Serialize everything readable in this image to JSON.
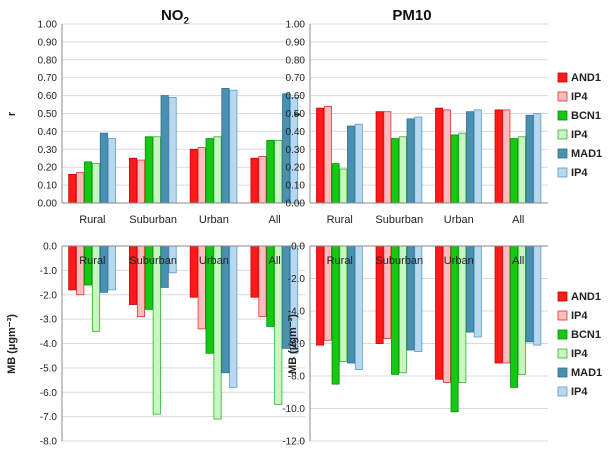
{
  "colors": {
    "AND1_fill": "#ff1a1a",
    "AND1_stroke": "#c00000",
    "IP4a_fill": "#ffbcbc",
    "IP4a_stroke": "#e03030",
    "BCN1_fill": "#14c814",
    "BCN1_stroke": "#009000",
    "IP4b_fill": "#c8f5c0",
    "IP4b_stroke": "#30b030",
    "MAD1_fill": "#4a90b0",
    "MAD1_stroke": "#2f6f8f",
    "IP4c_fill": "#b8d8f0",
    "IP4c_stroke": "#5a9ac8"
  },
  "legend": [
    "AND1",
    "IP4",
    "BCN1",
    "IP4",
    "MAD1",
    "IP4"
  ],
  "chart_data": [
    {
      "id": "no2-r",
      "type": "bar",
      "title": "NO",
      "title_sub": "2",
      "ylabel": "r",
      "ylim": [
        0,
        1.0
      ],
      "ytick_step": 0.1,
      "ytick_decimals": 2,
      "categories": [
        "Rural",
        "Suburban",
        "Urban",
        "All"
      ],
      "series": [
        {
          "name": "AND1",
          "values": [
            0.16,
            0.25,
            0.3,
            0.25
          ]
        },
        {
          "name": "IP4",
          "values": [
            0.17,
            0.24,
            0.31,
            0.26
          ]
        },
        {
          "name": "BCN1",
          "values": [
            0.23,
            0.37,
            0.36,
            0.35
          ]
        },
        {
          "name": "IP4",
          "values": [
            0.22,
            0.37,
            0.37,
            0.35
          ]
        },
        {
          "name": "MAD1",
          "values": [
            0.39,
            0.6,
            0.64,
            0.61
          ]
        },
        {
          "name": "IP4",
          "values": [
            0.36,
            0.59,
            0.63,
            0.59
          ]
        }
      ],
      "grid": true
    },
    {
      "id": "pm10-r",
      "type": "bar",
      "title": "PM10",
      "ylabel": "r",
      "ylim": [
        0,
        1.0
      ],
      "ytick_step": 0.1,
      "ytick_decimals": 2,
      "categories": [
        "Rural",
        "Suburban",
        "Urban",
        "All"
      ],
      "series": [
        {
          "name": "AND1",
          "values": [
            0.53,
            0.51,
            0.53,
            0.52
          ]
        },
        {
          "name": "IP4",
          "values": [
            0.54,
            0.51,
            0.52,
            0.52
          ]
        },
        {
          "name": "BCN1",
          "values": [
            0.22,
            0.36,
            0.38,
            0.36
          ]
        },
        {
          "name": "IP4",
          "values": [
            0.19,
            0.37,
            0.39,
            0.37
          ]
        },
        {
          "name": "MAD1",
          "values": [
            0.43,
            0.47,
            0.51,
            0.49
          ]
        },
        {
          "name": "IP4",
          "values": [
            0.44,
            0.48,
            0.52,
            0.5
          ]
        }
      ],
      "grid": true
    },
    {
      "id": "no2-mb",
      "type": "bar",
      "ylabel": "MB (µgm⁻³)",
      "ylim": [
        -8.0,
        0.0
      ],
      "ytick_step": 1.0,
      "ytick_decimals": 1,
      "categories": [
        "Rural",
        "Suburban",
        "Urban",
        "All"
      ],
      "series": [
        {
          "name": "AND1",
          "values": [
            -1.8,
            -2.4,
            -2.1,
            -2.1
          ]
        },
        {
          "name": "IP4",
          "values": [
            -2.0,
            -2.9,
            -3.4,
            -2.9
          ]
        },
        {
          "name": "BCN1",
          "values": [
            -1.6,
            -2.6,
            -4.4,
            -3.3
          ]
        },
        {
          "name": "IP4",
          "values": [
            -3.5,
            -6.9,
            -7.1,
            -6.5
          ]
        },
        {
          "name": "MAD1",
          "values": [
            -1.9,
            -1.7,
            -5.2,
            -4.2
          ]
        },
        {
          "name": "IP4",
          "values": [
            -1.8,
            -1.1,
            -5.8,
            -4.4
          ]
        }
      ],
      "grid": true
    },
    {
      "id": "pm10-mb",
      "type": "bar",
      "ylabel": "MB (µgm⁻³)",
      "ylim": [
        -12.0,
        0.0
      ],
      "ytick_step": 2.0,
      "ytick_decimals": 1,
      "categories": [
        "Rural",
        "Suburban",
        "Urban",
        "All"
      ],
      "series": [
        {
          "name": "AND1",
          "values": [
            -6.1,
            -6.0,
            -8.2,
            -7.2
          ]
        },
        {
          "name": "IP4",
          "values": [
            -5.8,
            -5.7,
            -8.4,
            -7.2
          ]
        },
        {
          "name": "BCN1",
          "values": [
            -8.5,
            -7.9,
            -10.2,
            -8.7
          ]
        },
        {
          "name": "IP4",
          "values": [
            -7.1,
            -7.8,
            -8.4,
            -7.9
          ]
        },
        {
          "name": "MAD1",
          "values": [
            -7.2,
            -6.4,
            -5.3,
            -5.9
          ]
        },
        {
          "name": "IP4",
          "values": [
            -7.6,
            -6.5,
            -5.6,
            -6.1
          ]
        }
      ],
      "grid": true
    }
  ]
}
